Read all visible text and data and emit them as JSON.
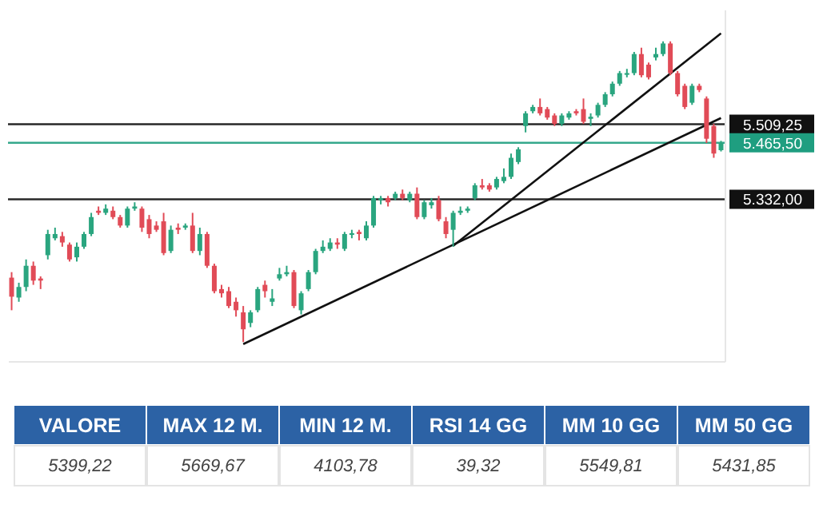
{
  "chart_data": [
    {
      "type": "candlestick",
      "categories": [
        null,
        null,
        null,
        null,
        null,
        null,
        null,
        null,
        null,
        null,
        null,
        null,
        null,
        null,
        null,
        null,
        null,
        null,
        null,
        null,
        null,
        null,
        null,
        null,
        null,
        null,
        null,
        null,
        null,
        null,
        null,
        null,
        null,
        null,
        null,
        null,
        null,
        null,
        null,
        null,
        null,
        null,
        null,
        null,
        null,
        null,
        null,
        null,
        null,
        null,
        null,
        null,
        null,
        null,
        null,
        null,
        null,
        null,
        null,
        null,
        null,
        null,
        null,
        null,
        null,
        null,
        null,
        null,
        null,
        null,
        null,
        null,
        null,
        null,
        null,
        null,
        null,
        null,
        null,
        null,
        null,
        null,
        null,
        null,
        null,
        null,
        null,
        null,
        null,
        null,
        null,
        null,
        null,
        null,
        null,
        null,
        null,
        null,
        null
      ],
      "ohlc": [
        [
          5147,
          5160,
          5070,
          5102
        ],
        [
          5100,
          5135,
          5090,
          5125
        ],
        [
          5125,
          5190,
          5115,
          5175
        ],
        [
          5175,
          5185,
          5130,
          5140
        ],
        [
          5145,
          5150,
          5120,
          5140
        ],
        [
          5200,
          5260,
          5190,
          5250
        ],
        [
          5240,
          5265,
          5235,
          5250
        ],
        [
          5245,
          5255,
          5220,
          5230
        ],
        [
          5225,
          5230,
          5185,
          5190
        ],
        [
          5195,
          5230,
          5185,
          5220
        ],
        [
          5220,
          5255,
          5215,
          5250
        ],
        [
          5250,
          5300,
          5245,
          5290
        ],
        [
          5305,
          5315,
          5295,
          5300
        ],
        [
          5300,
          5320,
          5295,
          5310
        ],
        [
          5305,
          5315,
          5285,
          5290
        ],
        [
          5290,
          5295,
          5265,
          5270
        ],
        [
          5270,
          5315,
          5265,
          5310
        ],
        [
          5310,
          5325,
          5305,
          5315
        ],
        [
          5310,
          5315,
          5255,
          5265
        ],
        [
          5285,
          5295,
          5240,
          5250
        ],
        [
          5270,
          5280,
          5255,
          5260
        ],
        [
          5280,
          5300,
          5200,
          5205
        ],
        [
          5210,
          5270,
          5205,
          5260
        ],
        [
          5265,
          5275,
          5250,
          5260
        ],
        [
          5265,
          5275,
          5260,
          5270
        ],
        [
          5270,
          5300,
          5205,
          5210
        ],
        [
          5210,
          5265,
          5200,
          5250
        ],
        [
          5250,
          5255,
          5170,
          5175
        ],
        [
          5175,
          5180,
          5110,
          5115
        ],
        [
          5120,
          5130,
          5100,
          5110
        ],
        [
          5115,
          5125,
          5075,
          5080
        ],
        [
          5090,
          5100,
          5055,
          5070
        ],
        [
          5065,
          5080,
          4995,
          5025
        ],
        [
          5040,
          5070,
          5030,
          5065
        ],
        [
          5070,
          5125,
          5065,
          5120
        ],
        [
          5130,
          5140,
          5100,
          5115
        ],
        [
          5090,
          5120,
          5080,
          5098
        ],
        [
          5145,
          5170,
          5140,
          5155
        ],
        [
          5155,
          5175,
          5150,
          5160
        ],
        [
          5160,
          5165,
          5075,
          5080
        ],
        [
          5070,
          5115,
          5060,
          5110
        ],
        [
          5120,
          5165,
          5115,
          5160
        ],
        [
          5160,
          5215,
          5155,
          5210
        ],
        [
          5210,
          5235,
          5205,
          5220
        ],
        [
          5215,
          5240,
          5210,
          5230
        ],
        [
          5230,
          5240,
          5215,
          5225
        ],
        [
          5215,
          5255,
          5210,
          5250
        ],
        [
          5248,
          5260,
          5240,
          5252
        ],
        [
          5255,
          5260,
          5235,
          5250
        ],
        [
          5240,
          5280,
          5235,
          5270
        ],
        [
          5270,
          5340,
          5265,
          5335
        ],
        [
          5330,
          5340,
          5320,
          5335
        ],
        [
          5335,
          5340,
          5315,
          5325
        ],
        [
          5335,
          5350,
          5330,
          5345
        ],
        [
          5345,
          5355,
          5330,
          5335
        ],
        [
          5330,
          5350,
          5325,
          5345
        ],
        [
          5345,
          5360,
          5285,
          5290
        ],
        [
          5290,
          5330,
          5285,
          5325
        ],
        [
          5318,
          5335,
          5310,
          5325
        ],
        [
          5330,
          5340,
          5280,
          5285
        ],
        [
          5280,
          5290,
          5240,
          5250
        ],
        [
          5260,
          5305,
          5220,
          5300
        ],
        [
          5300,
          5315,
          5295,
          5305
        ],
        [
          5305,
          5315,
          5300,
          5310
        ],
        [
          5335,
          5370,
          5330,
          5365
        ],
        [
          5365,
          5380,
          5355,
          5360
        ],
        [
          5365,
          5370,
          5350,
          5355
        ],
        [
          5360,
          5385,
          5355,
          5380
        ],
        [
          5375,
          5405,
          5370,
          5385
        ],
        [
          5385,
          5440,
          5380,
          5430
        ],
        [
          5420,
          5455,
          5415,
          5450
        ],
        [
          5505,
          5540,
          5490,
          5535
        ],
        [
          5540,
          5555,
          5535,
          5550
        ],
        [
          5550,
          5570,
          5530,
          5535
        ],
        [
          5545,
          5550,
          5520,
          5525
        ],
        [
          5530,
          5535,
          5505,
          5510
        ],
        [
          5510,
          5535,
          5505,
          5530
        ],
        [
          5525,
          5540,
          5520,
          5535
        ],
        [
          5540,
          5545,
          5530,
          5535
        ],
        [
          5545,
          5570,
          5510,
          5515
        ],
        [
          5522,
          5535,
          5505,
          5527
        ],
        [
          5530,
          5560,
          5525,
          5555
        ],
        [
          5555,
          5585,
          5550,
          5580
        ],
        [
          5580,
          5610,
          5575,
          5605
        ],
        [
          5605,
          5635,
          5600,
          5630
        ],
        [
          5626,
          5640,
          5620,
          5630
        ],
        [
          5630,
          5680,
          5625,
          5675
        ],
        [
          5675,
          5690,
          5620,
          5625
        ],
        [
          5650,
          5655,
          5615,
          5620
        ],
        [
          5667,
          5690,
          5660,
          5675
        ],
        [
          5675,
          5705,
          5670,
          5700
        ],
        [
          5700,
          5705,
          5625,
          5630
        ],
        [
          5630,
          5635,
          5575,
          5580
        ],
        [
          5600,
          5605,
          5545,
          5550
        ],
        [
          5560,
          5605,
          5555,
          5600
        ],
        [
          5600,
          5605,
          5585,
          5590
        ],
        [
          5570,
          5575,
          5465,
          5475
        ],
        [
          5505,
          5510,
          5430,
          5440
        ],
        [
          5448,
          5470,
          5445,
          5465
        ]
      ],
      "series": [
        {
          "type": "line",
          "color": "#111111",
          "values": [
            null,
            null,
            null,
            null,
            null,
            null,
            null,
            null,
            null,
            null,
            null,
            null,
            null,
            null,
            null,
            null,
            null,
            null,
            null,
            null,
            null,
            null,
            null,
            null,
            null,
            null,
            null,
            null,
            null,
            null,
            null,
            null,
            4990,
            null,
            null,
            null,
            null,
            null,
            null,
            null,
            null,
            null,
            null,
            null,
            null,
            null,
            null,
            null,
            null,
            null,
            null,
            null,
            null,
            null,
            null,
            null,
            null,
            null,
            null,
            null,
            null,
            null,
            null,
            null,
            null,
            null,
            null,
            null,
            null,
            null,
            null,
            null,
            null,
            null,
            null,
            null,
            null,
            null,
            null,
            null,
            null,
            null,
            null,
            null,
            null,
            null,
            null,
            null,
            null,
            null,
            null,
            null,
            null,
            null,
            null,
            null,
            null,
            null,
            5524
          ]
        },
        {
          "type": "line",
          "color": "#111111",
          "values": [
            null,
            null,
            null,
            null,
            null,
            null,
            null,
            null,
            null,
            null,
            null,
            null,
            null,
            null,
            null,
            null,
            null,
            null,
            null,
            null,
            null,
            null,
            null,
            null,
            null,
            null,
            null,
            null,
            null,
            null,
            null,
            null,
            null,
            null,
            null,
            null,
            null,
            null,
            null,
            null,
            null,
            null,
            null,
            null,
            null,
            null,
            null,
            null,
            null,
            null,
            null,
            null,
            null,
            null,
            null,
            null,
            null,
            null,
            null,
            null,
            null,
            5222,
            null,
            null,
            null,
            null,
            null,
            null,
            null,
            null,
            null,
            null,
            null,
            null,
            null,
            null,
            null,
            null,
            null,
            null,
            null,
            null,
            null,
            null,
            null,
            null,
            null,
            null,
            null,
            null,
            null,
            null,
            null,
            null,
            null,
            null,
            null,
            null,
            5724
          ]
        }
      ],
      "ylim": [
        4950,
        5780
      ],
      "yticks": [
        {
          "value": 5509.25,
          "label": "5.509,25"
        },
        {
          "value": 5465.5,
          "label": "5.465,50"
        },
        {
          "value": 5332,
          "label": "5.332,00"
        }
      ],
      "tick_labels": "y",
      "ref_lines": [
        {
          "axis": "y",
          "value": 5509.25,
          "color": "#111111"
        },
        {
          "axis": "y",
          "value": 5465.5,
          "color": "#1f9e80"
        },
        {
          "axis": "y",
          "value": 5332,
          "color": "#111111"
        }
      ]
    },
    {
      "type": "other",
      "categories": [
        "VALORE",
        "MAX 12 M.",
        "MIN 12 M.",
        "RSI 14 GG",
        "MM 10 GG",
        "MM 50 GG"
      ],
      "value_labels": [
        "5399,22",
        "5669,67",
        "4103,78",
        "39,32",
        "5549,81",
        "5431,85"
      ]
    }
  ]
}
